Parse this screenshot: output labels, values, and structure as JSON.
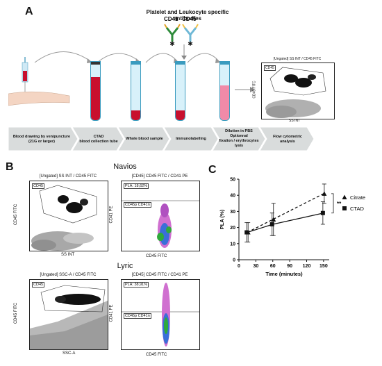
{
  "panel_a": {
    "letter": "A",
    "antibody_title": "Platelet and Leukocyte specific antibodies",
    "antibody_labels": [
      "CD41",
      "CD45"
    ],
    "steps": [
      "Blood drawing by venipuncture\n(21G or larger)",
      "CTAD\nblood collection tube",
      "Whole blood sample",
      "Immunolabelling",
      "Dilution in PBS\nOptionnal\nfixation / erythrocytes\nlysis",
      "Flow cytometric\nanalysis"
    ],
    "mini_plot": {
      "title": "[Ungated] SS INT / CD45 FITC",
      "gate": "CD45",
      "xlabel": "SS INT",
      "ylabel": "CD45 FITC"
    },
    "colors": {
      "step_band": "#d9dcdc",
      "tube_blood": "#c8102e",
      "tube_pink": "#f08aa8",
      "tube_glass": "#d8f1fa"
    }
  },
  "panel_b": {
    "letter": "B",
    "navios": {
      "label": "Navios",
      "left_plot": {
        "title": "[Ungated] SS INT / CD45 FITC",
        "gate": "CD45",
        "xlabel": "SS INT",
        "ylabel": "CD45 FITC"
      },
      "right_plot": {
        "title": "[CD45] CD45 FITC / CD41 PE",
        "pla": "PLA: 18,62%",
        "gate": "CD45p CD41n",
        "xlabel": "CD45 FITC",
        "ylabel": "CD41 PE"
      }
    },
    "lyric": {
      "label": "Lyric",
      "left_plot": {
        "title": "[Ungated] SSC-A / CD45 FITC",
        "gate": "CD45",
        "xlabel": "SSC-A",
        "ylabel": "CD45 FITC"
      },
      "right_plot": {
        "title": "[CD45] CD45 FITC / CD41 PE",
        "pla": "PLA: 38,91%",
        "gate": "CD45p CD41n",
        "xlabel": "CD45 FITC",
        "ylabel": "CD41 PE"
      }
    }
  },
  "panel_c": {
    "letter": "C",
    "significance": "**"
  },
  "chart_data": {
    "type": "line",
    "title": "",
    "xlabel": "Time (minutes)",
    "ylabel": "PLA (%)",
    "xlim": [
      0,
      160
    ],
    "ylim": [
      0,
      50
    ],
    "xticks": [
      0,
      30,
      60,
      90,
      120,
      150
    ],
    "yticks": [
      0,
      10,
      20,
      30,
      40,
      50
    ],
    "x": [
      15,
      60,
      150
    ],
    "series": [
      {
        "name": "Citrate",
        "values": [
          17,
          25,
          41
        ],
        "err": [
          6,
          10,
          6
        ],
        "style": "dashed",
        "marker": "triangle"
      },
      {
        "name": "CTAD",
        "values": [
          17,
          22,
          29
        ],
        "err": [
          6,
          7,
          7
        ],
        "style": "solid",
        "marker": "square"
      }
    ],
    "legend": "right"
  }
}
